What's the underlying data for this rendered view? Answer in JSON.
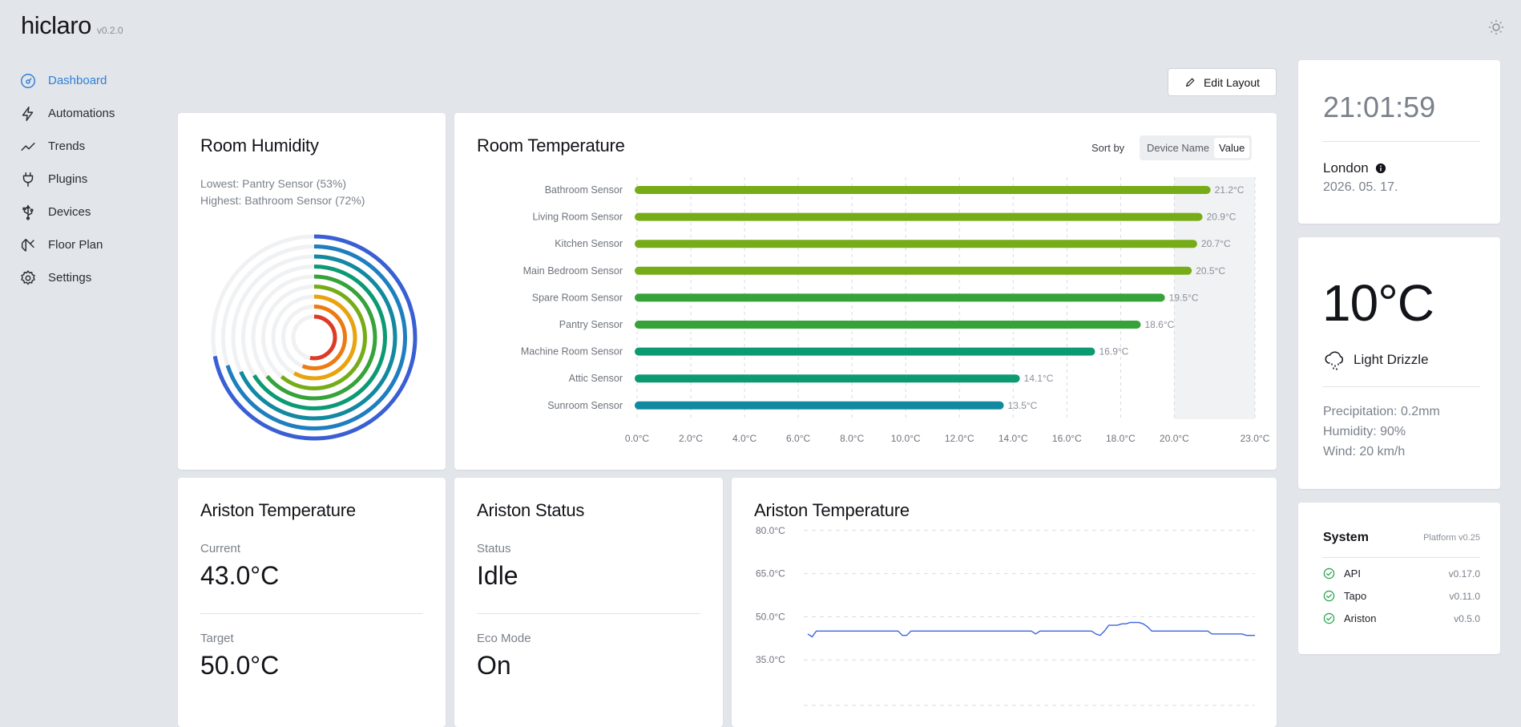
{
  "app": {
    "name": "hiclaro",
    "version": "v0.2.0"
  },
  "sidebar": {
    "items": [
      {
        "label": "Dashboard",
        "icon": "dashboard-icon",
        "active": true
      },
      {
        "label": "Automations",
        "icon": "bolt-icon"
      },
      {
        "label": "Trends",
        "icon": "trend-icon"
      },
      {
        "label": "Plugins",
        "icon": "plug-icon"
      },
      {
        "label": "Devices",
        "icon": "usb-icon"
      },
      {
        "label": "Floor Plan",
        "icon": "floor-plan-icon"
      },
      {
        "label": "Settings",
        "icon": "gear-icon"
      }
    ]
  },
  "toolbar": {
    "edit_label": "Edit Layout"
  },
  "humidity": {
    "title": "Room Humidity",
    "lowest": "Lowest: Pantry Sensor (53%)",
    "highest": "Highest: Bathroom Sensor (72%)",
    "rings": [
      72,
      70,
      68,
      66,
      64,
      61,
      58,
      56,
      53
    ]
  },
  "room_temperature": {
    "title": "Room Temperature",
    "sort_by_label": "Sort by",
    "sort_options": [
      "Device Name",
      "Value"
    ],
    "sort_active": "Value",
    "chart_data": {
      "type": "bar",
      "orientation": "horizontal",
      "categories": [
        "Bathroom Sensor",
        "Living Room Sensor",
        "Kitchen Sensor",
        "Main Bedroom Sensor",
        "Spare Room Sensor",
        "Pantry Sensor",
        "Machine Room Sensor",
        "Attic Sensor",
        "Sunroom Sensor"
      ],
      "values": [
        21.2,
        20.9,
        20.7,
        20.5,
        19.5,
        18.6,
        16.9,
        14.1,
        13.5
      ],
      "value_labels": [
        "21.2°C",
        "20.9°C",
        "20.7°C",
        "20.5°C",
        "19.5°C",
        "18.6°C",
        "16.9°C",
        "14.1°C",
        "13.5°C"
      ],
      "xlim": [
        0,
        23
      ],
      "x_ticks": [
        0,
        2,
        4,
        6,
        8,
        10,
        12,
        14,
        16,
        18,
        20,
        23
      ],
      "x_tick_labels": [
        "0.0°C",
        "2.0°C",
        "4.0°C",
        "6.0°C",
        "8.0°C",
        "10.0°C",
        "12.0°C",
        "14.0°C",
        "16.0°C",
        "18.0°C",
        "20.0°C",
        "23.0°C"
      ],
      "highlight_range": [
        20,
        23
      ],
      "grid": true,
      "colors": [
        "#76ac17",
        "#76ac17",
        "#76ac17",
        "#76ac17",
        "#35a339",
        "#35a339",
        "#0b9a72",
        "#0b9a72",
        "#1289a0"
      ]
    }
  },
  "clock": {
    "time": "21:01:59",
    "city": "London",
    "date": "2026. 05. 17."
  },
  "weather": {
    "temp": "10°C",
    "condition": "Light Drizzle",
    "precipitation": "Precipitation: 0.2mm",
    "humidity": "Humidity: 90%",
    "wind": "Wind: 20 km/h"
  },
  "system": {
    "title": "System",
    "platform": "Platform v0.25",
    "services": [
      {
        "name": "API",
        "version": "v0.17.0"
      },
      {
        "name": "Tapo",
        "version": "v0.11.0"
      },
      {
        "name": "Ariston",
        "version": "v0.5.0"
      }
    ]
  },
  "ariston_temp": {
    "title": "Ariston Temperature",
    "current_label": "Current",
    "current": "43.0°C",
    "target_label": "Target",
    "target": "50.0°C"
  },
  "ariston_status": {
    "title": "Ariston Status",
    "status_label": "Status",
    "status": "Idle",
    "eco_label": "Eco Mode",
    "eco": "On"
  },
  "ariston_chart": {
    "title": "Ariston Temperature",
    "chart_data": {
      "type": "line",
      "y_ticks": [
        80,
        65,
        50,
        35
      ],
      "y_tick_labels": [
        "80.0°C",
        "65.0°C",
        "50.0°C",
        "35.0°C"
      ],
      "ylim": [
        20,
        83
      ],
      "grid": true,
      "color": "#3d63dd",
      "values": [
        44,
        43,
        45,
        45,
        45,
        45,
        45,
        45,
        45,
        45,
        45,
        45,
        45,
        45,
        45,
        45,
        45,
        45,
        45,
        45,
        45,
        45,
        43.5,
        43.5,
        45,
        45,
        45,
        45,
        45,
        45,
        45,
        45,
        45,
        45,
        45,
        45,
        45,
        45,
        45,
        45,
        45,
        45,
        45,
        45,
        45,
        45,
        45,
        45,
        45,
        45,
        45,
        45,
        45,
        44,
        45,
        45,
        45,
        45,
        45,
        45,
        45,
        45,
        45,
        45,
        45,
        45,
        45,
        44,
        43.5,
        45,
        47,
        47,
        47,
        47.5,
        47.5,
        48,
        48,
        48,
        47.5,
        46.5,
        45,
        45,
        45,
        45,
        45,
        45,
        45,
        45,
        45,
        45,
        45,
        45,
        45,
        45,
        44,
        44,
        44,
        44,
        44,
        44,
        44,
        44,
        43.5,
        43.5,
        43.5
      ]
    }
  }
}
